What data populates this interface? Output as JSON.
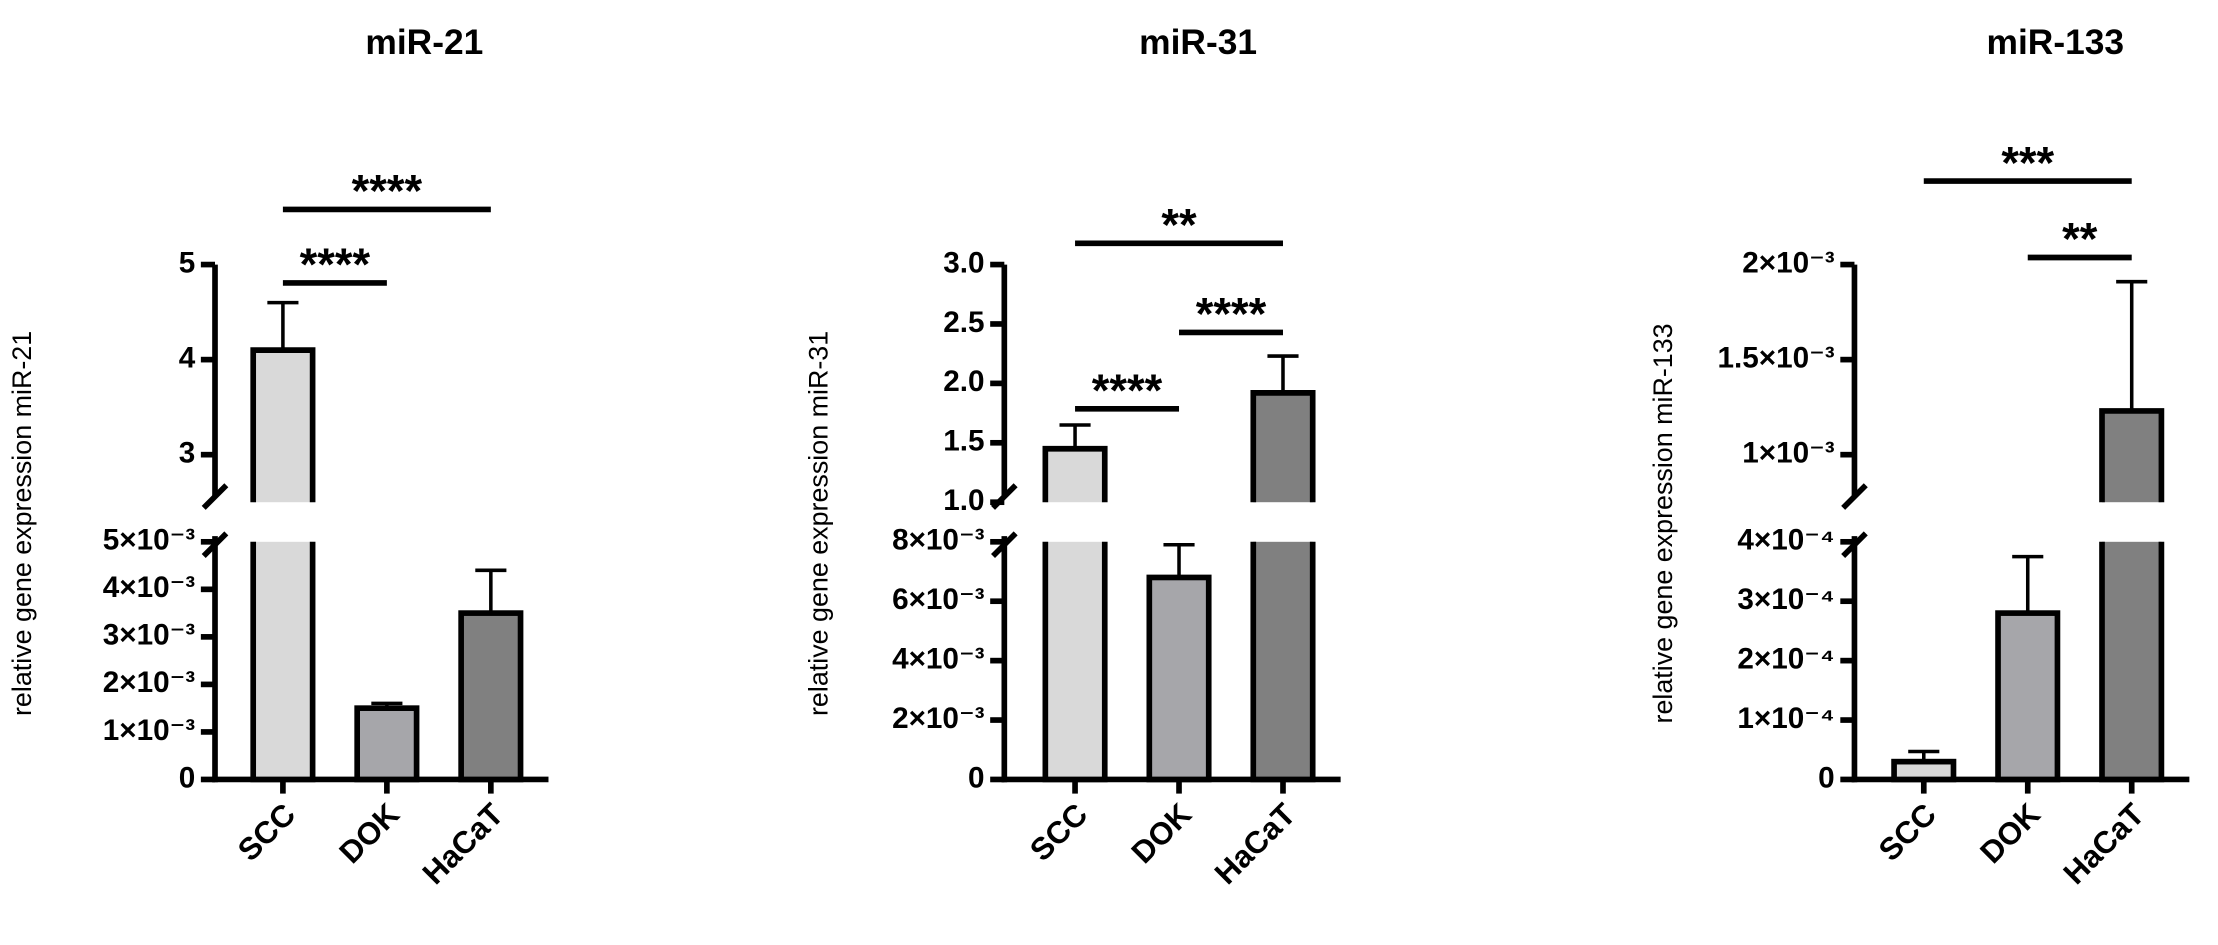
{
  "chart_data": [
    {
      "type": "bar",
      "title": "miR-21",
      "y_label": "relative gene expression miR-21",
      "categories": [
        "SCC",
        "DOK",
        "HaCaT"
      ],
      "values": [
        4.1,
        0.0015,
        0.0035
      ],
      "errors": [
        0.5,
        0.0001,
        0.0009
      ],
      "colors": [
        "#d9d9d9",
        "#a6a6aa",
        "#808080"
      ],
      "axis_break": true,
      "ylim": [
        0,
        0.005
      ],
      "yticks": [
        0,
        {
          "value": 0.001,
          "label": "1×10⁻³"
        },
        {
          "value": 0.002,
          "label": "2×10⁻³"
        },
        {
          "value": 0.003,
          "label": "3×10⁻³"
        },
        {
          "value": 0.004,
          "label": "4×10⁻³"
        },
        {
          "value": 0.005,
          "label": "5×10⁻³"
        }
      ],
      "ylim_upper": [
        2.5,
        5
      ],
      "yticks_upper": [
        3,
        4,
        5
      ],
      "significance": [
        {
          "between": [
            "SCC",
            "DOK"
          ],
          "label": "****"
        },
        {
          "between": [
            "SCC",
            "HaCaT"
          ],
          "label": "****"
        }
      ]
    },
    {
      "type": "bar",
      "title": "miR-31",
      "y_label": "relative gene expression miR-31",
      "categories": [
        "SCC",
        "DOK",
        "HaCaT"
      ],
      "values": [
        1.45,
        0.0068,
        1.92
      ],
      "errors": [
        0.2,
        0.0011,
        0.31
      ],
      "colors": [
        "#d9d9d9",
        "#a6a6aa",
        "#808080"
      ],
      "axis_break": true,
      "ylim": [
        0,
        0.008
      ],
      "yticks": [
        0,
        {
          "value": 0.002,
          "label": "2×10⁻³"
        },
        {
          "value": 0.004,
          "label": "4×10⁻³"
        },
        {
          "value": 0.006,
          "label": "6×10⁻³"
        },
        {
          "value": 0.008,
          "label": "8×10⁻³"
        }
      ],
      "ylim_upper": [
        1,
        3
      ],
      "yticks_upper": [
        {
          "value": 1,
          "label": "1.0"
        },
        1.5,
        {
          "value": 2,
          "label": "2.0"
        },
        2.5,
        {
          "value": 3,
          "label": "3.0"
        }
      ],
      "significance": [
        {
          "between": [
            "SCC",
            "DOK"
          ],
          "label": "****"
        },
        {
          "between": [
            "DOK",
            "HaCaT"
          ],
          "label": "****"
        },
        {
          "between": [
            "SCC",
            "HaCaT"
          ],
          "label": "**"
        }
      ]
    },
    {
      "type": "bar",
      "title": "miR-133",
      "y_label": "relative gene expression miR-133",
      "categories": [
        "SCC",
        "DOK",
        "HaCaT"
      ],
      "values": [
        3e-05,
        0.00028,
        0.00123
      ],
      "errors": [
        1.7e-05,
        9.5e-05,
        0.00068
      ],
      "colors": [
        "#d9d9d9",
        "#a6a6aa",
        "#808080"
      ],
      "axis_break": true,
      "ylim": [
        0,
        0.0004
      ],
      "yticks": [
        0,
        {
          "value": 0.0001,
          "label": "1×10⁻⁴"
        },
        {
          "value": 0.0002,
          "label": "2×10⁻⁴"
        },
        {
          "value": 0.0003,
          "label": "3×10⁻⁴"
        },
        {
          "value": 0.0004,
          "label": "4×10⁻⁴"
        }
      ],
      "ylim_upper": [
        0.00075,
        0.002
      ],
      "yticks_upper": [
        {
          "value": 0.001,
          "label": "1×10⁻³"
        },
        {
          "value": 0.0015,
          "label": "1.5×10⁻³"
        },
        {
          "value": 0.002,
          "label": "2×10⁻³"
        }
      ],
      "significance": [
        {
          "between": [
            "DOK",
            "HaCaT"
          ],
          "label": "**"
        },
        {
          "between": [
            "SCC",
            "HaCaT"
          ],
          "label": "***"
        }
      ]
    }
  ]
}
